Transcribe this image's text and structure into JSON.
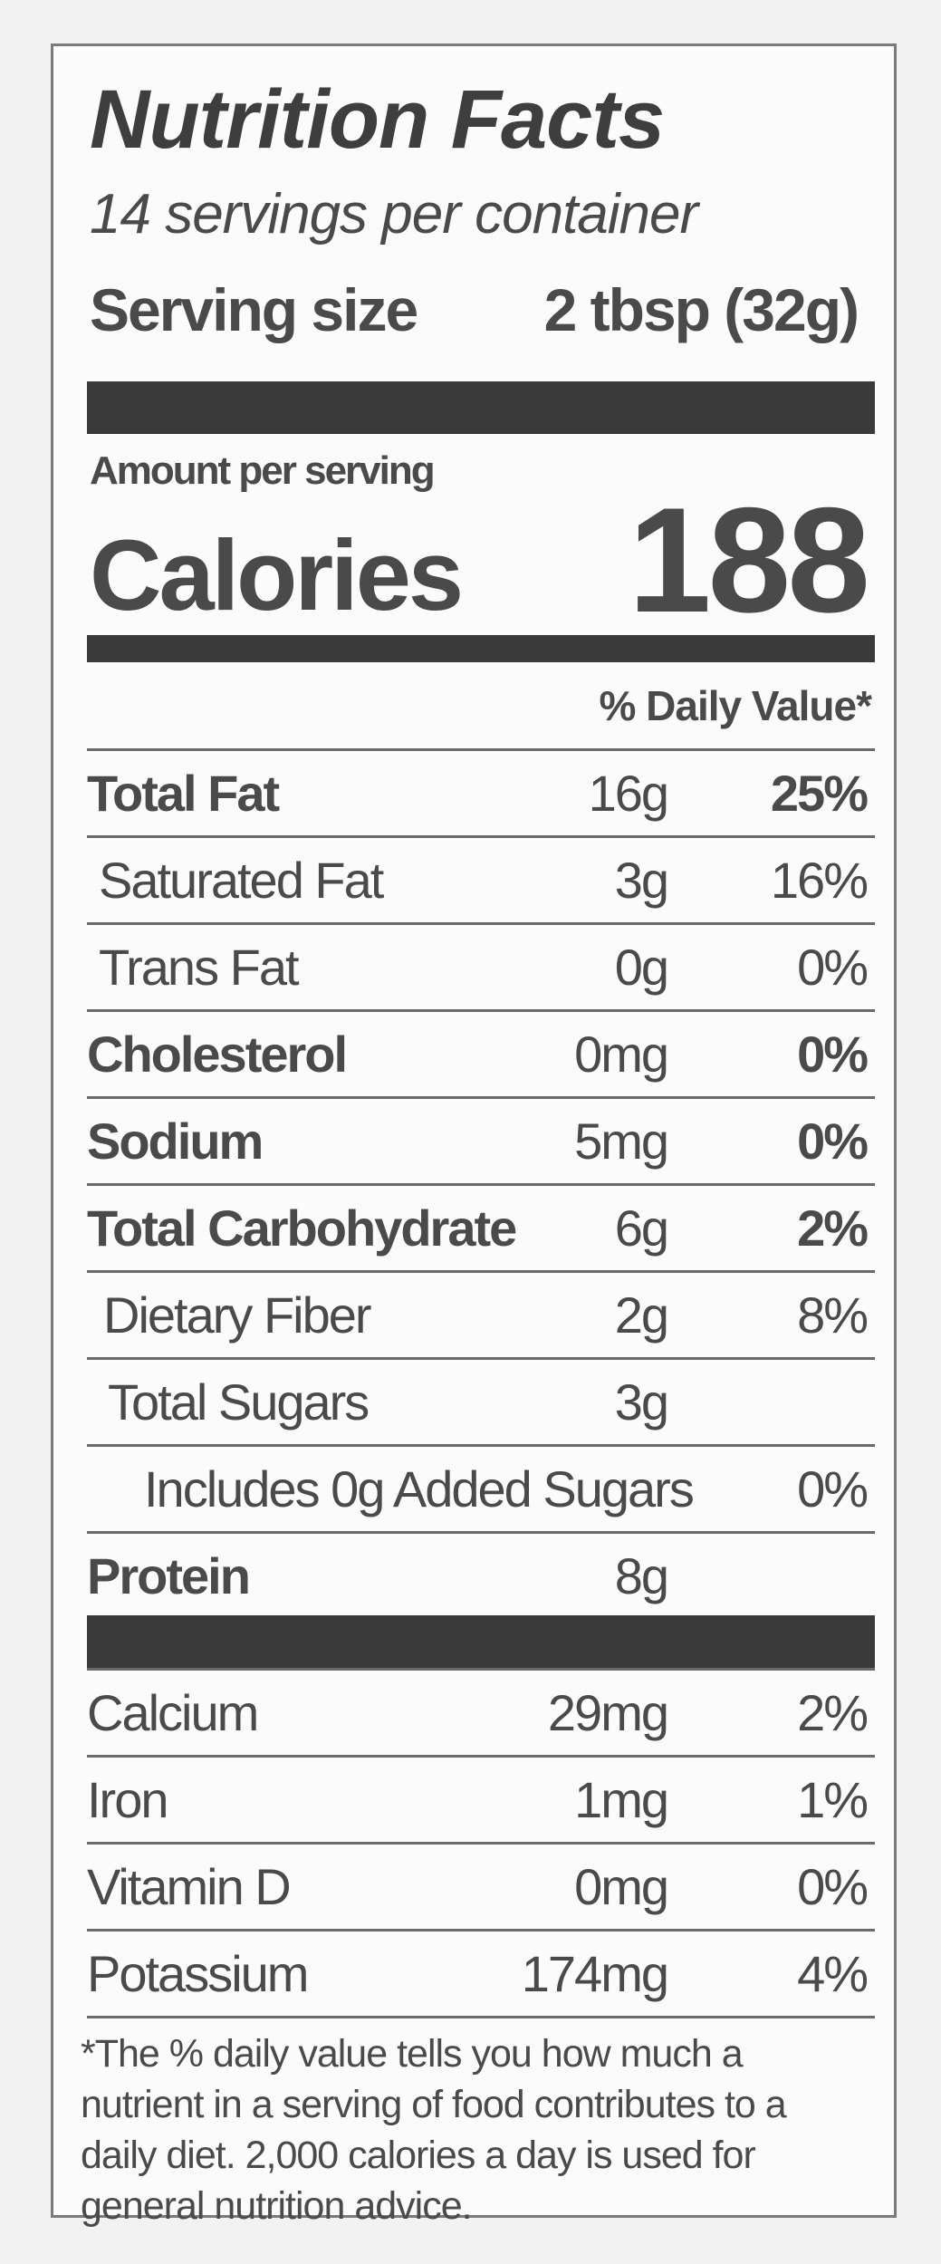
{
  "header": {
    "title": "Nutrition Facts",
    "servings": "14 servings per container",
    "serving_size_label": "Serving size",
    "serving_size_value": "2 tbsp (32g)"
  },
  "calories": {
    "amount_label": "Amount per serving",
    "label": "Calories",
    "value": "188"
  },
  "daily_value_header": "% Daily Value*",
  "nutrients": [
    {
      "name": "Total Fat",
      "amount": "16g",
      "dv": "25%"
    },
    {
      "name": "Saturated Fat",
      "amount": "3g",
      "dv": "16%"
    },
    {
      "name": "Trans Fat",
      "amount": "0g",
      "dv": "0%"
    },
    {
      "name": "Cholesterol",
      "amount": "0mg",
      "dv": "0%"
    },
    {
      "name": "Sodium",
      "amount": "5mg",
      "dv": "0%"
    },
    {
      "name": "Total Carbohydrate",
      "amount": "6g",
      "dv": "2%"
    },
    {
      "name": "Dietary Fiber",
      "amount": "2g",
      "dv": "8%"
    },
    {
      "name": "Total Sugars",
      "amount": "3g"
    },
    {
      "name": "Includes 0g Added Sugars",
      "dv": "0%"
    },
    {
      "name": "Protein",
      "amount": "8g"
    }
  ],
  "vitamins": [
    {
      "name": "Calcium",
      "amount": "29mg",
      "dv": "2%"
    },
    {
      "name": "Iron",
      "amount": "1mg",
      "dv": "1%"
    },
    {
      "name": "Vitamin D",
      "amount": "0mg",
      "dv": "0%"
    },
    {
      "name": "Potassium",
      "amount": "174mg",
      "dv": "4%"
    }
  ],
  "footnote": "*The % daily value tells you how much a nutrient in a serving of food contributes to a daily diet. 2,000 calories a day is used for general nutrition advice."
}
